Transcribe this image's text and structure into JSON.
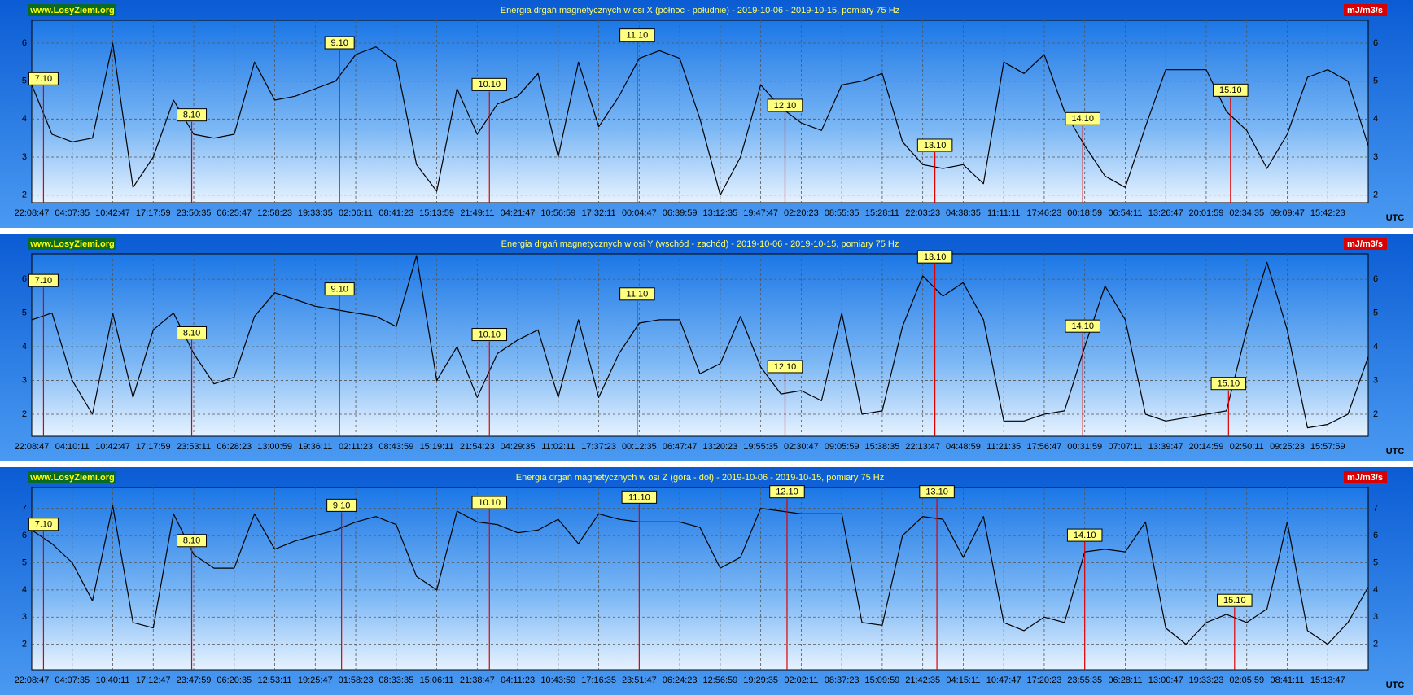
{
  "chart_data": [
    {
      "type": "line",
      "title": "Energia drgań magnetycznych w osi X (północ - południe) - 2019-10-06 - 2019-10-15, pomiary 75 Hz",
      "brand": "www.LosyZiemi.org",
      "unit": "mJ/m3/s",
      "x_unit": "UTC",
      "categories": [
        "22:08:47",
        null,
        "04:07:35",
        null,
        "10:42:47",
        null,
        "17:17:59",
        null,
        "23:50:35",
        null,
        "06:25:47",
        null,
        "12:58:23",
        null,
        "19:33:35",
        null,
        "02:06:11",
        null,
        "08:41:23",
        null,
        "15:13:59",
        null,
        "21:49:11",
        null,
        "04:21:47",
        null,
        "10:56:59",
        null,
        "17:32:11",
        null,
        "00:04:47",
        null,
        "06:39:59",
        null,
        "13:12:35",
        null,
        "19:47:47",
        null,
        "02:20:23",
        null,
        "08:55:35",
        null,
        "15:28:11",
        null,
        "22:03:23",
        null,
        "04:38:35",
        null,
        "11:11:11",
        null,
        "17:46:23",
        null,
        "00:18:59",
        null,
        "06:54:11",
        null,
        "13:26:47",
        null,
        "20:01:59",
        null,
        "02:34:35",
        null,
        "09:09:47",
        null,
        "15:42:23",
        null,
        null
      ],
      "values": [
        4.9,
        3.6,
        3.4,
        3.5,
        6.0,
        2.2,
        3.0,
        4.5,
        3.6,
        3.5,
        3.6,
        5.5,
        4.5,
        4.6,
        4.8,
        5.0,
        5.7,
        5.9,
        5.5,
        2.8,
        2.1,
        4.8,
        3.6,
        4.4,
        4.6,
        5.2,
        3.0,
        5.5,
        3.8,
        4.6,
        5.6,
        5.8,
        5.6,
        4.0,
        2.0,
        3.0,
        4.9,
        4.3,
        3.9,
        3.7,
        4.9,
        5.0,
        5.2,
        3.4,
        2.8,
        2.7,
        2.8,
        2.3,
        5.5,
        5.2,
        5.7,
        4.2,
        3.3,
        2.5,
        2.2,
        3.8,
        5.3,
        5.3,
        5.3,
        4.2,
        3.7,
        2.7,
        3.6,
        5.1,
        5.3,
        5.0,
        3.3
      ],
      "color": "#000000",
      "ylim": [
        1.8,
        6.6
      ],
      "yticks": [
        2,
        3,
        4,
        5,
        6
      ],
      "grid": true,
      "annotations": [
        {
          "text": "7.10",
          "x": 0.58,
          "y": 5.05
        },
        {
          "text": "8.10",
          "x": 7.9,
          "y": 4.1
        },
        {
          "text": "9.10",
          "x": 15.2,
          "y": 6.0
        },
        {
          "text": "10.10",
          "x": 22.6,
          "y": 4.9
        },
        {
          "text": "11.10",
          "x": 29.9,
          "y": 6.2
        },
        {
          "text": "12.10",
          "x": 37.2,
          "y": 4.35
        },
        {
          "text": "13.10",
          "x": 44.6,
          "y": 3.3
        },
        {
          "text": "14.10",
          "x": 51.9,
          "y": 4.0
        },
        {
          "text": "15.10",
          "x": 59.2,
          "y": 4.75
        }
      ]
    },
    {
      "type": "line",
      "title": "Energia drgań magnetycznych w osi Y (wschód - zachód) - 2019-10-06 - 2019-10-15, pomiary 75 Hz",
      "brand": "www.LosyZiemi.org",
      "unit": "mJ/m3/s",
      "x_unit": "UTC",
      "categories": [
        "22:08:47",
        null,
        "04:10:11",
        null,
        "10:42:47",
        null,
        "17:17:59",
        null,
        "23:53:11",
        null,
        "06:28:23",
        null,
        "13:00:59",
        null,
        "19:36:11",
        null,
        "02:11:23",
        null,
        "08:43:59",
        null,
        "15:19:11",
        null,
        "21:54:23",
        null,
        "04:29:35",
        null,
        "11:02:11",
        null,
        "17:37:23",
        null,
        "00:12:35",
        null,
        "06:47:47",
        null,
        "13:20:23",
        null,
        "19:55:35",
        null,
        "02:30:47",
        null,
        "09:05:59",
        null,
        "15:38:35",
        null,
        "22:13:47",
        null,
        "04:48:59",
        null,
        "11:21:35",
        null,
        "17:56:47",
        null,
        "00:31:59",
        null,
        "07:07:11",
        null,
        "13:39:47",
        null,
        "20:14:59",
        null,
        "02:50:11",
        null,
        "09:25:23",
        null,
        "15:57:59",
        null,
        null
      ],
      "values": [
        4.8,
        5.0,
        3.0,
        2.0,
        5.0,
        2.5,
        4.5,
        5.0,
        3.8,
        2.9,
        3.1,
        4.9,
        5.6,
        5.4,
        5.2,
        5.1,
        5.0,
        4.9,
        4.6,
        6.7,
        3.0,
        4.0,
        2.5,
        3.8,
        4.2,
        4.5,
        2.5,
        4.8,
        2.5,
        3.8,
        4.7,
        4.8,
        4.8,
        3.2,
        3.5,
        4.9,
        3.4,
        2.6,
        2.7,
        2.4,
        5.0,
        2.0,
        2.1,
        4.6,
        6.1,
        5.5,
        5.9,
        4.8,
        1.8,
        1.8,
        2.0,
        2.1,
        4.0,
        5.8,
        4.8,
        2.0,
        1.8,
        1.9,
        2.0,
        2.1,
        4.5,
        6.5,
        4.5,
        1.6,
        1.7,
        2.0,
        3.7
      ],
      "color": "#000000",
      "ylim": [
        1.35,
        6.75
      ],
      "yticks": [
        2,
        3,
        4,
        5,
        6
      ],
      "grid": true,
      "annotations": [
        {
          "text": "7.10",
          "x": 0.58,
          "y": 5.95
        },
        {
          "text": "8.10",
          "x": 7.9,
          "y": 4.4
        },
        {
          "text": "9.10",
          "x": 15.2,
          "y": 5.7
        },
        {
          "text": "10.10",
          "x": 22.6,
          "y": 4.35
        },
        {
          "text": "11.10",
          "x": 29.9,
          "y": 5.55
        },
        {
          "text": "12.10",
          "x": 37.2,
          "y": 3.4
        },
        {
          "text": "13.10",
          "x": 44.6,
          "y": 6.65
        },
        {
          "text": "14.10",
          "x": 51.9,
          "y": 4.6
        },
        {
          "text": "15.10",
          "x": 59.1,
          "y": 2.9
        }
      ]
    },
    {
      "type": "line",
      "title": "Energia drgań magnetycznych w osi Z (góra - dół) - 2019-10-06 - 2019-10-15, pomiary 75 Hz",
      "brand": "www.LosyZiemi.org",
      "unit": "mJ/m3/s",
      "x_unit": "UTC",
      "categories": [
        "22:08:47",
        null,
        "04:07:35",
        null,
        "10:40:11",
        null,
        "17:12:47",
        null,
        "23:47:59",
        null,
        "06:20:35",
        null,
        "12:53:11",
        null,
        "19:25:47",
        null,
        "01:58:23",
        null,
        "08:33:35",
        null,
        "15:06:11",
        null,
        "21:38:47",
        null,
        "04:11:23",
        null,
        "10:43:59",
        null,
        "17:16:35",
        null,
        "23:51:47",
        null,
        "06:24:23",
        null,
        "12:56:59",
        null,
        "19:29:35",
        null,
        "02:02:11",
        null,
        "08:37:23",
        null,
        "15:09:59",
        null,
        "21:42:35",
        null,
        "04:15:11",
        null,
        "10:47:47",
        null,
        "17:20:23",
        null,
        "23:55:35",
        null,
        "06:28:11",
        null,
        "13:00:47",
        null,
        "19:33:23",
        null,
        "02:05:59",
        null,
        "08:41:11",
        null,
        "15:13:47",
        null,
        null
      ],
      "values": [
        6.2,
        5.7,
        5.0,
        3.6,
        7.1,
        2.8,
        2.6,
        6.8,
        5.3,
        4.8,
        4.8,
        6.8,
        5.5,
        5.8,
        6.0,
        6.2,
        6.5,
        6.7,
        6.4,
        4.5,
        4.0,
        6.9,
        6.5,
        6.4,
        6.1,
        6.2,
        6.6,
        5.7,
        6.8,
        6.6,
        6.5,
        6.5,
        6.5,
        6.3,
        4.8,
        5.2,
        7.0,
        6.9,
        6.8,
        6.8,
        6.8,
        2.8,
        2.7,
        6.0,
        6.7,
        6.6,
        5.2,
        6.7,
        2.8,
        2.5,
        3.0,
        2.8,
        5.4,
        5.5,
        5.4,
        6.5,
        2.6,
        2.0,
        2.8,
        3.1,
        2.8,
        3.3,
        6.5,
        2.5,
        2.0,
        2.8,
        4.1
      ],
      "color": "#000000",
      "ylim": [
        1.06,
        7.77
      ],
      "yticks": [
        2,
        3,
        4,
        5,
        6,
        7
      ],
      "grid": true,
      "annotations": [
        {
          "text": "7.10",
          "x": 0.58,
          "y": 6.4
        },
        {
          "text": "8.10",
          "x": 7.9,
          "y": 5.8
        },
        {
          "text": "9.10",
          "x": 15.3,
          "y": 7.1
        },
        {
          "text": "10.10",
          "x": 22.6,
          "y": 7.2
        },
        {
          "text": "11.10",
          "x": 30.0,
          "y": 7.4
        },
        {
          "text": "12.10",
          "x": 37.3,
          "y": 7.6
        },
        {
          "text": "13.10",
          "x": 44.7,
          "y": 7.6
        },
        {
          "text": "14.10",
          "x": 52.0,
          "y": 6.0
        },
        {
          "text": "15.10",
          "x": 59.4,
          "y": 3.6
        }
      ]
    }
  ]
}
